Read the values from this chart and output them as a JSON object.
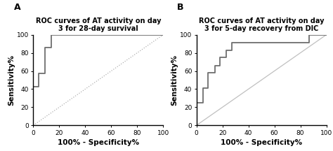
{
  "panel_A_title": "ROC curves of AT activity on day\n3 for 28-day survival",
  "panel_B_title": "ROC curves of AT activity on day\n3 for 5-day recovery from DIC",
  "panel_A_label": "A",
  "panel_B_label": "B",
  "xlabel": "100% - Specificity%",
  "ylabel": "Sensitivity%",
  "xlim": [
    0,
    100
  ],
  "ylim": [
    0,
    100
  ],
  "xticks": [
    0,
    20,
    40,
    60,
    80,
    100
  ],
  "yticks": [
    0,
    20,
    40,
    60,
    80,
    100
  ],
  "roc_color": "#6e6e6e",
  "diag_color_A": "#b0b0b0",
  "diag_color_B": "#c0c0c0",
  "panel_A_roc_x": [
    0,
    0,
    4,
    4,
    9,
    9,
    14,
    14,
    27,
    27,
    100
  ],
  "panel_A_roc_y": [
    0,
    43,
    43,
    57,
    57,
    86,
    86,
    100,
    100,
    100,
    100
  ],
  "panel_B_roc_x": [
    0,
    0,
    5,
    5,
    9,
    9,
    14,
    14,
    18,
    18,
    23,
    23,
    27,
    27,
    40,
    40,
    87,
    87,
    95,
    95,
    100
  ],
  "panel_B_roc_y": [
    0,
    25,
    25,
    41,
    41,
    58,
    58,
    66,
    66,
    75,
    75,
    83,
    83,
    91,
    91,
    91,
    91,
    100,
    100,
    100,
    100
  ],
  "title_fontsize": 7.0,
  "label_fontsize": 7.5,
  "tick_fontsize": 6.5,
  "panel_label_fontsize": 9,
  "figsize": [
    4.74,
    2.16
  ],
  "dpi": 100
}
